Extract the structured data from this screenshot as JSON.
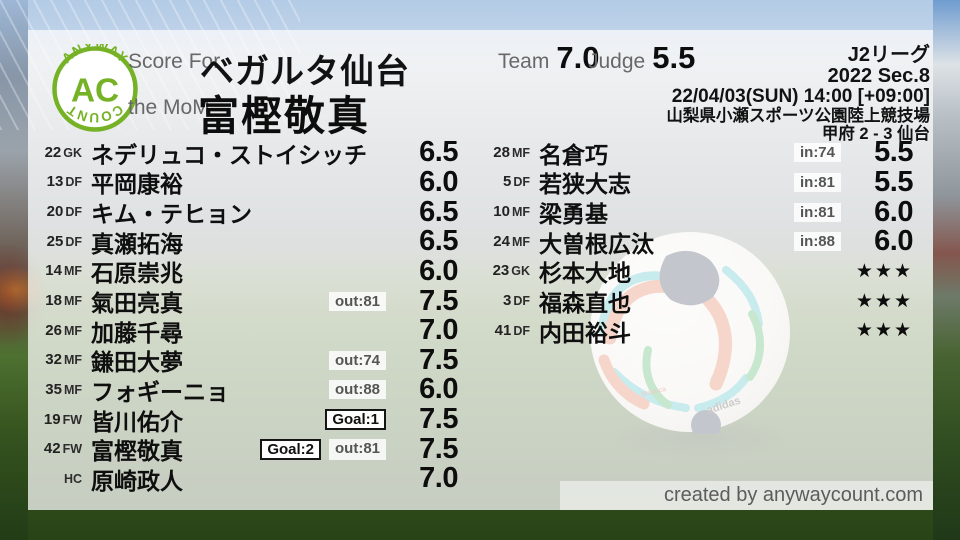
{
  "logo": {
    "arc_top": "ANYWAY",
    "center": "AC",
    "arc_bottom": "COUNT"
  },
  "header": {
    "score_for_label": "Score For",
    "team_name": "ベガルタ仙台",
    "mom_label": "the MoM",
    "mom_name": "富樫敬真",
    "team_label": "Team",
    "team_score": "7.0",
    "judge_label": "Judge",
    "judge_score": "5.5",
    "match_info": [
      "J2リーグ",
      "2022 Sec.8",
      "22/04/03(SUN) 14:00 [+09:00]",
      "山梨県小瀬スポーツ公園陸上競技場",
      "甲府 2 - 3 仙台"
    ]
  },
  "players": {
    "starters": [
      {
        "num": "22",
        "pos": "GK",
        "name": "ネデリュコ・ストイシッチ",
        "chips": [],
        "score": "6.5"
      },
      {
        "num": "13",
        "pos": "DF",
        "name": "平岡康裕",
        "chips": [],
        "score": "6.0"
      },
      {
        "num": "20",
        "pos": "DF",
        "name": "キム・テヒョン",
        "chips": [],
        "score": "6.5"
      },
      {
        "num": "25",
        "pos": "DF",
        "name": "真瀬拓海",
        "chips": [],
        "score": "6.5"
      },
      {
        "num": "14",
        "pos": "MF",
        "name": "石原崇兆",
        "chips": [],
        "score": "6.0"
      },
      {
        "num": "18",
        "pos": "MF",
        "name": "氣田亮真",
        "chips": [
          {
            "type": "sub",
            "label": "out:81"
          }
        ],
        "score": "7.5"
      },
      {
        "num": "26",
        "pos": "MF",
        "name": "加藤千尋",
        "chips": [],
        "score": "7.0"
      },
      {
        "num": "32",
        "pos": "MF",
        "name": "鎌田大夢",
        "chips": [
          {
            "type": "sub",
            "label": "out:74"
          }
        ],
        "score": "7.5"
      },
      {
        "num": "35",
        "pos": "MF",
        "name": "フォギーニョ",
        "chips": [
          {
            "type": "sub",
            "label": "out:88"
          }
        ],
        "score": "6.0"
      },
      {
        "num": "19",
        "pos": "FW",
        "name": "皆川佑介",
        "chips": [
          {
            "type": "goal",
            "label": "Goal:1"
          }
        ],
        "score": "7.5"
      },
      {
        "num": "42",
        "pos": "FW",
        "name": "富樫敬真",
        "chips": [
          {
            "type": "goal",
            "label": "Goal:2"
          },
          {
            "type": "sub",
            "label": "out:81"
          }
        ],
        "score": "7.5"
      },
      {
        "num": "",
        "pos": "HC",
        "name": "原崎政人",
        "chips": [],
        "score": "7.0"
      }
    ],
    "bench": [
      {
        "num": "28",
        "pos": "MF",
        "name": "名倉巧",
        "chips": [
          {
            "type": "sub",
            "label": "in:74"
          }
        ],
        "score": "5.5"
      },
      {
        "num": "5",
        "pos": "DF",
        "name": "若狭大志",
        "chips": [
          {
            "type": "sub",
            "label": "in:81"
          }
        ],
        "score": "5.5"
      },
      {
        "num": "10",
        "pos": "MF",
        "name": "梁勇基",
        "chips": [
          {
            "type": "sub",
            "label": "in:81"
          }
        ],
        "score": "6.0"
      },
      {
        "num": "24",
        "pos": "MF",
        "name": "大曽根広汰",
        "chips": [
          {
            "type": "sub",
            "label": "in:88"
          }
        ],
        "score": "6.0"
      },
      {
        "num": "23",
        "pos": "GK",
        "name": "杉本大地",
        "chips": [],
        "score": "★★★"
      },
      {
        "num": "3",
        "pos": "DF",
        "name": "福森直也",
        "chips": [],
        "score": "★★★"
      },
      {
        "num": "41",
        "pos": "DF",
        "name": "内田裕斗",
        "chips": [],
        "score": "★★★"
      }
    ]
  },
  "footer": {
    "credit": "created by anywaycount.com"
  },
  "colors": {
    "accent_green": "#76b226",
    "chip_goal_border": "#151515",
    "text_dark": "#0d0d0d",
    "label_gray": "#686868"
  }
}
